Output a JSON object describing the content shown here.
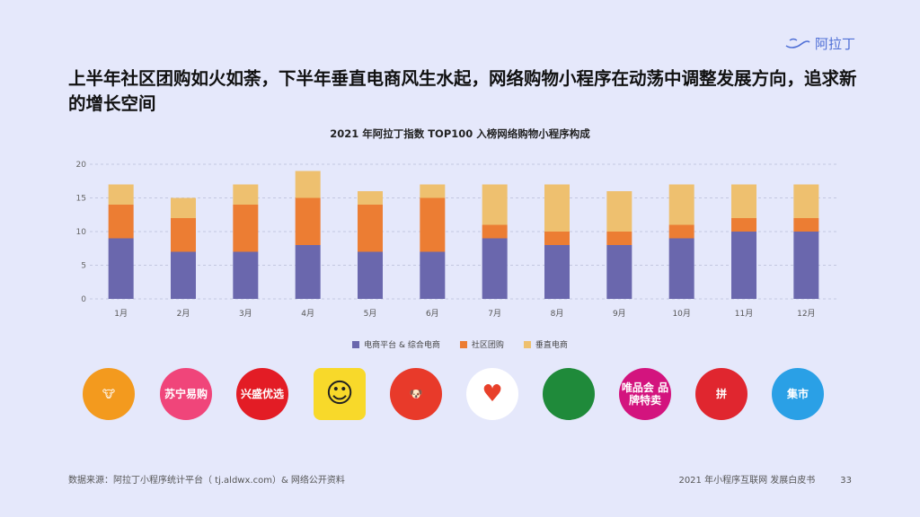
{
  "brand": {
    "name": "阿拉丁"
  },
  "headline": "上半年社区团购如火如荼，下半年垂直电商风生水起，网络购物小程序在动荡中调整发展方向，追求新的增长空间",
  "chart_data": {
    "type": "bar",
    "stacked": true,
    "title": "2021 年阿拉丁指数 TOP100 入榜网络购物小程序构成",
    "categories": [
      "1月",
      "2月",
      "3月",
      "4月",
      "5月",
      "6月",
      "7月",
      "8月",
      "9月",
      "10月",
      "11月",
      "12月"
    ],
    "series": [
      {
        "name": "电商平台 & 综合电商",
        "color": "#6a67ad",
        "values": [
          9,
          7,
          7,
          8,
          7,
          7,
          9,
          8,
          8,
          9,
          10,
          10
        ]
      },
      {
        "name": "社区团购",
        "color": "#ec7d33",
        "values": [
          5,
          5,
          7,
          7,
          7,
          8,
          2,
          2,
          2,
          2,
          2,
          2
        ]
      },
      {
        "name": "垂直电商",
        "color": "#eec06f",
        "values": [
          3,
          3,
          3,
          4,
          2,
          2,
          6,
          7,
          6,
          6,
          5,
          5
        ]
      }
    ],
    "ylim": [
      0,
      20
    ],
    "yticks": [
      0,
      5,
      10,
      15,
      20
    ],
    "grid": true,
    "legend_position": "bottom"
  },
  "logos": [
    {
      "text": "",
      "color": "#f39a1e"
    },
    {
      "text": "苏宁易购",
      "color": "#f0457a"
    },
    {
      "text": "兴盛优选",
      "color": "#e31c25"
    },
    {
      "text": "",
      "color": "#f8d92a"
    },
    {
      "text": "",
      "color": "#e83a2a"
    },
    {
      "text": "",
      "color": "#ffffff"
    },
    {
      "text": "",
      "color": "#1f8a3a"
    },
    {
      "text": "唯品会 品牌特卖",
      "color": "#d3147e"
    },
    {
      "text": "拼",
      "color": "#e0262f"
    },
    {
      "text": "集市",
      "color": "#2aa0e6"
    }
  ],
  "footer": {
    "source": "数据来源：阿拉丁小程序统计平台（ tj.aldwx.com）& 网络公开资料",
    "report": "2021 年小程序互联网 发展白皮书",
    "page": "33"
  }
}
